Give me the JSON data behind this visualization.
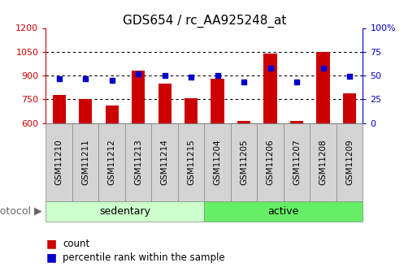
{
  "title": "GDS654 / rc_AA925248_at",
  "samples": [
    "GSM11210",
    "GSM11211",
    "GSM11212",
    "GSM11213",
    "GSM11214",
    "GSM11215",
    "GSM11204",
    "GSM11205",
    "GSM11206",
    "GSM11207",
    "GSM11208",
    "GSM11209"
  ],
  "counts": [
    780,
    752,
    710,
    930,
    850,
    760,
    882,
    615,
    1040,
    615,
    1050,
    790
  ],
  "percentiles": [
    47,
    47,
    45,
    52,
    50,
    48,
    50,
    43,
    58,
    43,
    58,
    49
  ],
  "bar_color": "#cc0000",
  "dot_color": "#0000cc",
  "ylim_left": [
    600,
    1200
  ],
  "ylim_right": [
    0,
    100
  ],
  "yticks_left": [
    600,
    750,
    900,
    1050,
    1200
  ],
  "ytick_labels_left": [
    "600",
    "750",
    "900",
    "1050",
    "1200"
  ],
  "yticks_right": [
    0,
    25,
    50,
    75,
    100
  ],
  "ytick_labels_right": [
    "0",
    "25",
    "50",
    "75",
    "100%"
  ],
  "group_info": [
    {
      "label": "sedentary",
      "start": 0,
      "end": 5,
      "color": "#ccffcc"
    },
    {
      "label": "active",
      "start": 6,
      "end": 11,
      "color": "#66ee66"
    }
  ],
  "legend_count": "count",
  "legend_pct": "percentile rank within the sample",
  "protocol_label": "protocol",
  "background_color": "#ffffff",
  "title_fontsize": 11,
  "tick_fontsize": 8,
  "label_fontsize": 9,
  "bar_width": 0.5
}
